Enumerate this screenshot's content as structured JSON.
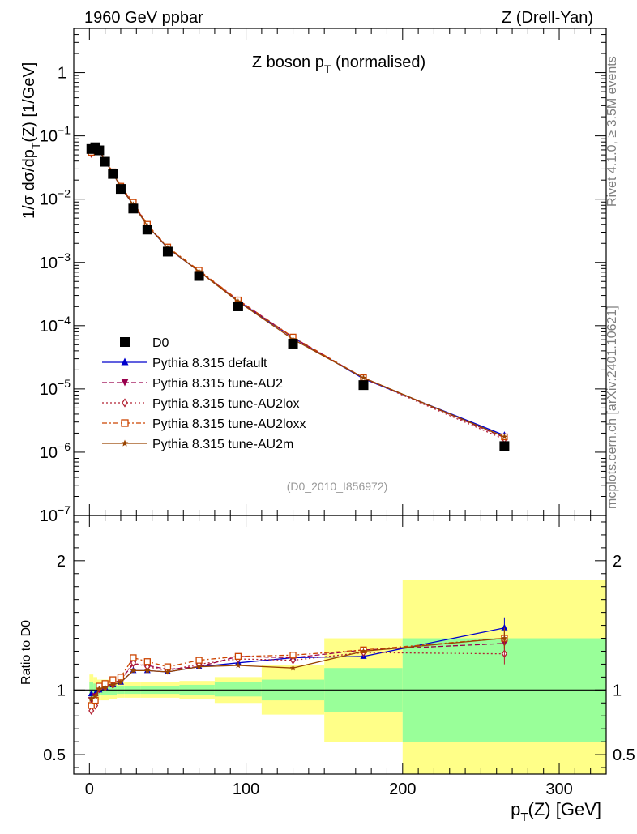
{
  "header": {
    "left": "1960 GeV ppbar",
    "right": "Z (Drell-Yan)"
  },
  "side_labels": {
    "rivet": "Rivet 4.1.0, ≥ 3.5M events",
    "mcplots": "mcplots.cern.ch [arXiv:2401.10621]"
  },
  "colors": {
    "data": "#000000",
    "default": "#0000cc",
    "au2": "#99004c",
    "au2lox": "#b22233",
    "au2loxx": "#cc4400",
    "au2m": "#994400",
    "band_inner": "#99ff99",
    "band_outer": "#ffff88"
  },
  "chart_data": [
    {
      "type": "line",
      "panel": "main",
      "title": "Z boson p",
      "title_sub": "T",
      "title_tail": " (normalised)",
      "ylabel_parts": [
        "1/σ  dσ/dp",
        "T",
        "(Z) [1/GeV]"
      ],
      "yscale": "log",
      "ylim": [
        1e-07,
        5
      ],
      "xlim": [
        -10,
        330
      ],
      "yticks": [
        {
          "value": 1e-07,
          "base": "10",
          "exp": "−7"
        },
        {
          "value": 1e-06,
          "base": "10",
          "exp": "−6"
        },
        {
          "value": 1e-05,
          "base": "10",
          "exp": "−5"
        },
        {
          "value": 0.0001,
          "base": "10",
          "exp": "−4"
        },
        {
          "value": 0.001,
          "base": "10",
          "exp": "−3"
        },
        {
          "value": 0.01,
          "base": "10",
          "exp": "−2"
        },
        {
          "value": 0.1,
          "base": "10",
          "exp": "−1"
        },
        {
          "value": 1,
          "base": "1",
          "exp": ""
        }
      ],
      "analysis_id": "(D0_2010_I856972)",
      "x": [
        1.25,
        3.75,
        6.25,
        10,
        15,
        20,
        28,
        37,
        50,
        70,
        95,
        130,
        175,
        265
      ],
      "data": {
        "name": "D0",
        "values": [
          0.062,
          0.066,
          0.059,
          0.039,
          0.025,
          0.0145,
          0.0071,
          0.0033,
          0.00148,
          0.00061,
          0.000202,
          5.2e-05,
          1.15e-05,
          1.25e-06
        ]
      },
      "series": [
        {
          "key": "default",
          "name": "Pythia 8.315 default",
          "marker": "triangle-up",
          "dash": "",
          "values": [
            0.06,
            0.064,
            0.059,
            0.04,
            0.026,
            0.0152,
            0.0082,
            0.0038,
            0.00168,
            0.00072,
            0.000245,
            6.5e-05,
            1.45e-05,
            1.85e-06
          ]
        },
        {
          "key": "au2",
          "name": "Pythia 8.315 tune-AU2",
          "marker": "triangle-down",
          "dash": "6,3",
          "values": [
            0.057,
            0.062,
            0.06,
            0.04,
            0.026,
            0.0155,
            0.0085,
            0.0039,
            0.0017,
            0.00072,
            0.000255,
            6.5e-05,
            1.5e-05,
            1.7e-06
          ]
        },
        {
          "key": "au2lox",
          "name": "Pythia 8.315 tune-AU2lox",
          "marker": "diamond-open",
          "dash": "2,3",
          "values": [
            0.052,
            0.058,
            0.06,
            0.04,
            0.026,
            0.0157,
            0.0086,
            0.0039,
            0.0017,
            0.00073,
            0.00025,
            6.4e-05,
            1.48e-05,
            1.6e-06
          ]
        },
        {
          "key": "au2loxx",
          "name": "Pythia 8.315 tune-AU2loxx",
          "marker": "square-open",
          "dash": "6,3,2,3",
          "values": [
            0.055,
            0.061,
            0.061,
            0.041,
            0.027,
            0.016,
            0.0089,
            0.004,
            0.00175,
            0.00075,
            0.000255,
            6.6e-05,
            1.5e-05,
            1.75e-06
          ]
        },
        {
          "key": "au2m",
          "name": "Pythia 8.315 tune-AU2m",
          "marker": "star",
          "dash": "",
          "values": [
            0.058,
            0.063,
            0.06,
            0.04,
            0.026,
            0.0153,
            0.0082,
            0.0038,
            0.0017,
            0.00072,
            0.00024,
            6.1e-05,
            1.5e-05,
            1.75e-06
          ]
        }
      ]
    },
    {
      "type": "line",
      "panel": "ratio",
      "ylabel": "Ratio to D0",
      "xlabel_parts": [
        "p",
        "T",
        "(Z) [GeV]"
      ],
      "xlim": [
        -10,
        330
      ],
      "ylim": [
        0.35,
        2.35
      ],
      "xticks": [
        0,
        100,
        200,
        300
      ],
      "yticks": [
        0.5,
        1,
        2
      ],
      "bins": [
        {
          "x0": 0,
          "x1": 2.5,
          "inner": [
            0.94,
            1.06
          ],
          "outer": [
            0.87,
            1.12
          ]
        },
        {
          "x0": 2.5,
          "x1": 5,
          "inner": [
            0.95,
            1.05
          ],
          "outer": [
            0.9,
            1.1
          ]
        },
        {
          "x0": 5,
          "x1": 7.5,
          "inner": [
            0.96,
            1.04
          ],
          "outer": [
            0.92,
            1.08
          ]
        },
        {
          "x0": 7.5,
          "x1": 12.5,
          "inner": [
            0.96,
            1.04
          ],
          "outer": [
            0.92,
            1.08
          ]
        },
        {
          "x0": 12.5,
          "x1": 17.5,
          "inner": [
            0.96,
            1.04
          ],
          "outer": [
            0.93,
            1.07
          ]
        },
        {
          "x0": 17.5,
          "x1": 22.5,
          "inner": [
            0.97,
            1.03
          ],
          "outer": [
            0.94,
            1.06
          ]
        },
        {
          "x0": 22.5,
          "x1": 32.5,
          "inner": [
            0.97,
            1.03
          ],
          "outer": [
            0.94,
            1.06
          ]
        },
        {
          "x0": 32.5,
          "x1": 42.5,
          "inner": [
            0.97,
            1.03
          ],
          "outer": [
            0.94,
            1.06
          ]
        },
        {
          "x0": 42.5,
          "x1": 57.5,
          "inner": [
            0.97,
            1.03
          ],
          "outer": [
            0.94,
            1.06
          ]
        },
        {
          "x0": 57.5,
          "x1": 80,
          "inner": [
            0.96,
            1.04
          ],
          "outer": [
            0.93,
            1.07
          ]
        },
        {
          "x0": 80,
          "x1": 110,
          "inner": [
            0.95,
            1.06
          ],
          "outer": [
            0.9,
            1.1
          ]
        },
        {
          "x0": 110,
          "x1": 150,
          "inner": [
            0.92,
            1.08
          ],
          "outer": [
            0.81,
            1.19
          ]
        },
        {
          "x0": 150,
          "x1": 200,
          "inner": [
            0.83,
            1.17
          ],
          "outer": [
            0.6,
            1.4
          ]
        },
        {
          "x0": 200,
          "x1": 330,
          "inner": [
            0.6,
            1.4
          ],
          "outer": [
            0.33,
            1.85
          ]
        }
      ],
      "reference": 1,
      "series": [
        {
          "key": "default",
          "values": [
            0.97,
            0.97,
            1.0,
            1.02,
            1.04,
            1.06,
            1.15,
            1.15,
            1.14,
            1.18,
            1.21,
            1.25,
            1.26,
            1.48
          ]
        },
        {
          "key": "au2",
          "values": [
            0.92,
            0.95,
            1.0,
            1.03,
            1.05,
            1.08,
            1.2,
            1.19,
            1.16,
            1.18,
            1.26,
            1.25,
            1.31,
            1.36
          ]
        },
        {
          "key": "au2lox",
          "values": [
            0.84,
            0.88,
            1.02,
            1.02,
            1.04,
            1.08,
            1.21,
            1.18,
            1.15,
            1.2,
            1.24,
            1.23,
            1.29,
            1.28
          ]
        },
        {
          "key": "au2loxx",
          "values": [
            0.88,
            0.92,
            1.03,
            1.05,
            1.08,
            1.1,
            1.25,
            1.22,
            1.18,
            1.23,
            1.26,
            1.27,
            1.31,
            1.4
          ]
        },
        {
          "key": "au2m",
          "values": [
            0.93,
            0.95,
            1.01,
            1.02,
            1.04,
            1.06,
            1.15,
            1.15,
            1.14,
            1.18,
            1.19,
            1.17,
            1.3,
            1.4
          ]
        }
      ]
    }
  ]
}
